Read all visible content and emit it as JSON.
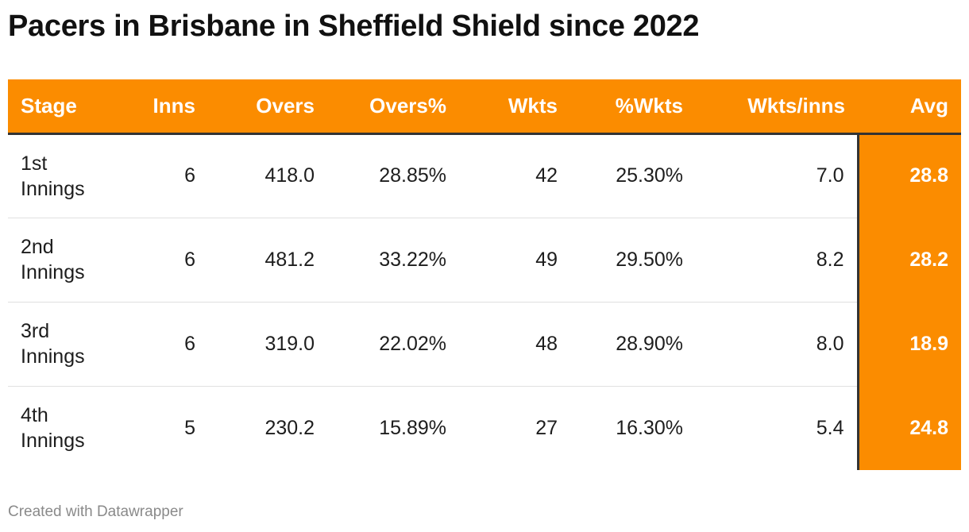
{
  "title": "Pacers in Brisbane in Sheffield Shield since 2022",
  "credit": "Created with Datawrapper",
  "colors": {
    "accent": "#fb8c00",
    "header_text": "#ffffff",
    "divider": "#333333"
  },
  "chart_data": {
    "type": "table",
    "columns": [
      "Stage",
      "Inns",
      "Overs",
      "Overs%",
      "Wkts",
      "%Wkts",
      "Wkts/inns",
      "Avg"
    ],
    "rows": [
      [
        "1st Innings",
        "6",
        "418.0",
        "28.85%",
        "42",
        "25.30%",
        "7.0",
        "28.8"
      ],
      [
        "2nd Innings",
        "6",
        "481.2",
        "33.22%",
        "49",
        "29.50%",
        "8.2",
        "28.2"
      ],
      [
        "3rd Innings",
        "6",
        "319.0",
        "22.02%",
        "48",
        "28.90%",
        "8.0",
        "18.9"
      ],
      [
        "4th Innings",
        "5",
        "230.2",
        "15.89%",
        "27",
        "16.30%",
        "5.4",
        "24.8"
      ]
    ],
    "highlighted_column": "Avg"
  }
}
